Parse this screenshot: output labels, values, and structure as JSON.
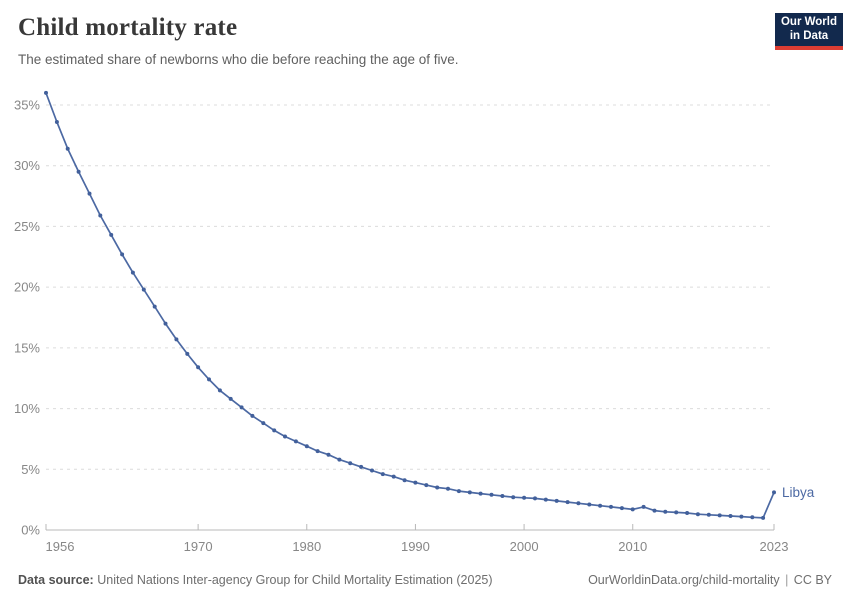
{
  "header": {
    "title": "Child mortality rate",
    "subtitle": "The estimated share of newborns who die before reaching the age of five.",
    "logo": {
      "line1": "Our World",
      "line2": "in Data",
      "bg_color": "#12294d",
      "accent_color": "#dc3d33"
    }
  },
  "chart_data": {
    "type": "line",
    "title": "Child mortality rate",
    "ylabel": "",
    "xlabel": "",
    "unit": "%",
    "grid": true,
    "xlim": [
      1956,
      2023
    ],
    "ylim": [
      0,
      35
    ],
    "xticks": [
      1956,
      1970,
      1980,
      1990,
      2000,
      2010,
      2023
    ],
    "yticks": [
      0,
      5,
      10,
      15,
      20,
      25,
      30,
      35
    ],
    "line_color": "#4c69a3",
    "marker_color": "#42609b",
    "end_label": "Libya",
    "series": [
      {
        "name": "Libya",
        "x": [
          1956,
          1957,
          1958,
          1959,
          1960,
          1961,
          1962,
          1963,
          1964,
          1965,
          1966,
          1967,
          1968,
          1969,
          1970,
          1971,
          1972,
          1973,
          1974,
          1975,
          1976,
          1977,
          1978,
          1979,
          1980,
          1981,
          1982,
          1983,
          1984,
          1985,
          1986,
          1987,
          1988,
          1989,
          1990,
          1991,
          1992,
          1993,
          1994,
          1995,
          1996,
          1997,
          1998,
          1999,
          2000,
          2001,
          2002,
          2003,
          2004,
          2005,
          2006,
          2007,
          2008,
          2009,
          2010,
          2011,
          2012,
          2013,
          2014,
          2015,
          2016,
          2017,
          2018,
          2019,
          2020,
          2021,
          2022,
          2023
        ],
        "values": [
          36.0,
          33.6,
          31.4,
          29.5,
          27.7,
          25.9,
          24.3,
          22.7,
          21.2,
          19.8,
          18.4,
          17.0,
          15.7,
          14.5,
          13.4,
          12.4,
          11.5,
          10.8,
          10.1,
          9.4,
          8.8,
          8.2,
          7.7,
          7.3,
          6.9,
          6.5,
          6.2,
          5.8,
          5.5,
          5.2,
          4.9,
          4.6,
          4.4,
          4.1,
          3.9,
          3.7,
          3.5,
          3.4,
          3.2,
          3.1,
          3.0,
          2.9,
          2.8,
          2.7,
          2.65,
          2.6,
          2.5,
          2.4,
          2.3,
          2.2,
          2.1,
          2.0,
          1.9,
          1.8,
          1.7,
          1.9,
          1.6,
          1.5,
          1.45,
          1.4,
          1.3,
          1.25,
          1.2,
          1.15,
          1.1,
          1.05,
          1.0,
          3.1
        ]
      }
    ]
  },
  "footer": {
    "source_label": "Data source:",
    "source_text": "United Nations Inter-agency Group for Child Mortality Estimation (2025)",
    "link_text": "OurWorldinData.org/child-mortality",
    "separator": "|",
    "license_text": "CC BY"
  }
}
